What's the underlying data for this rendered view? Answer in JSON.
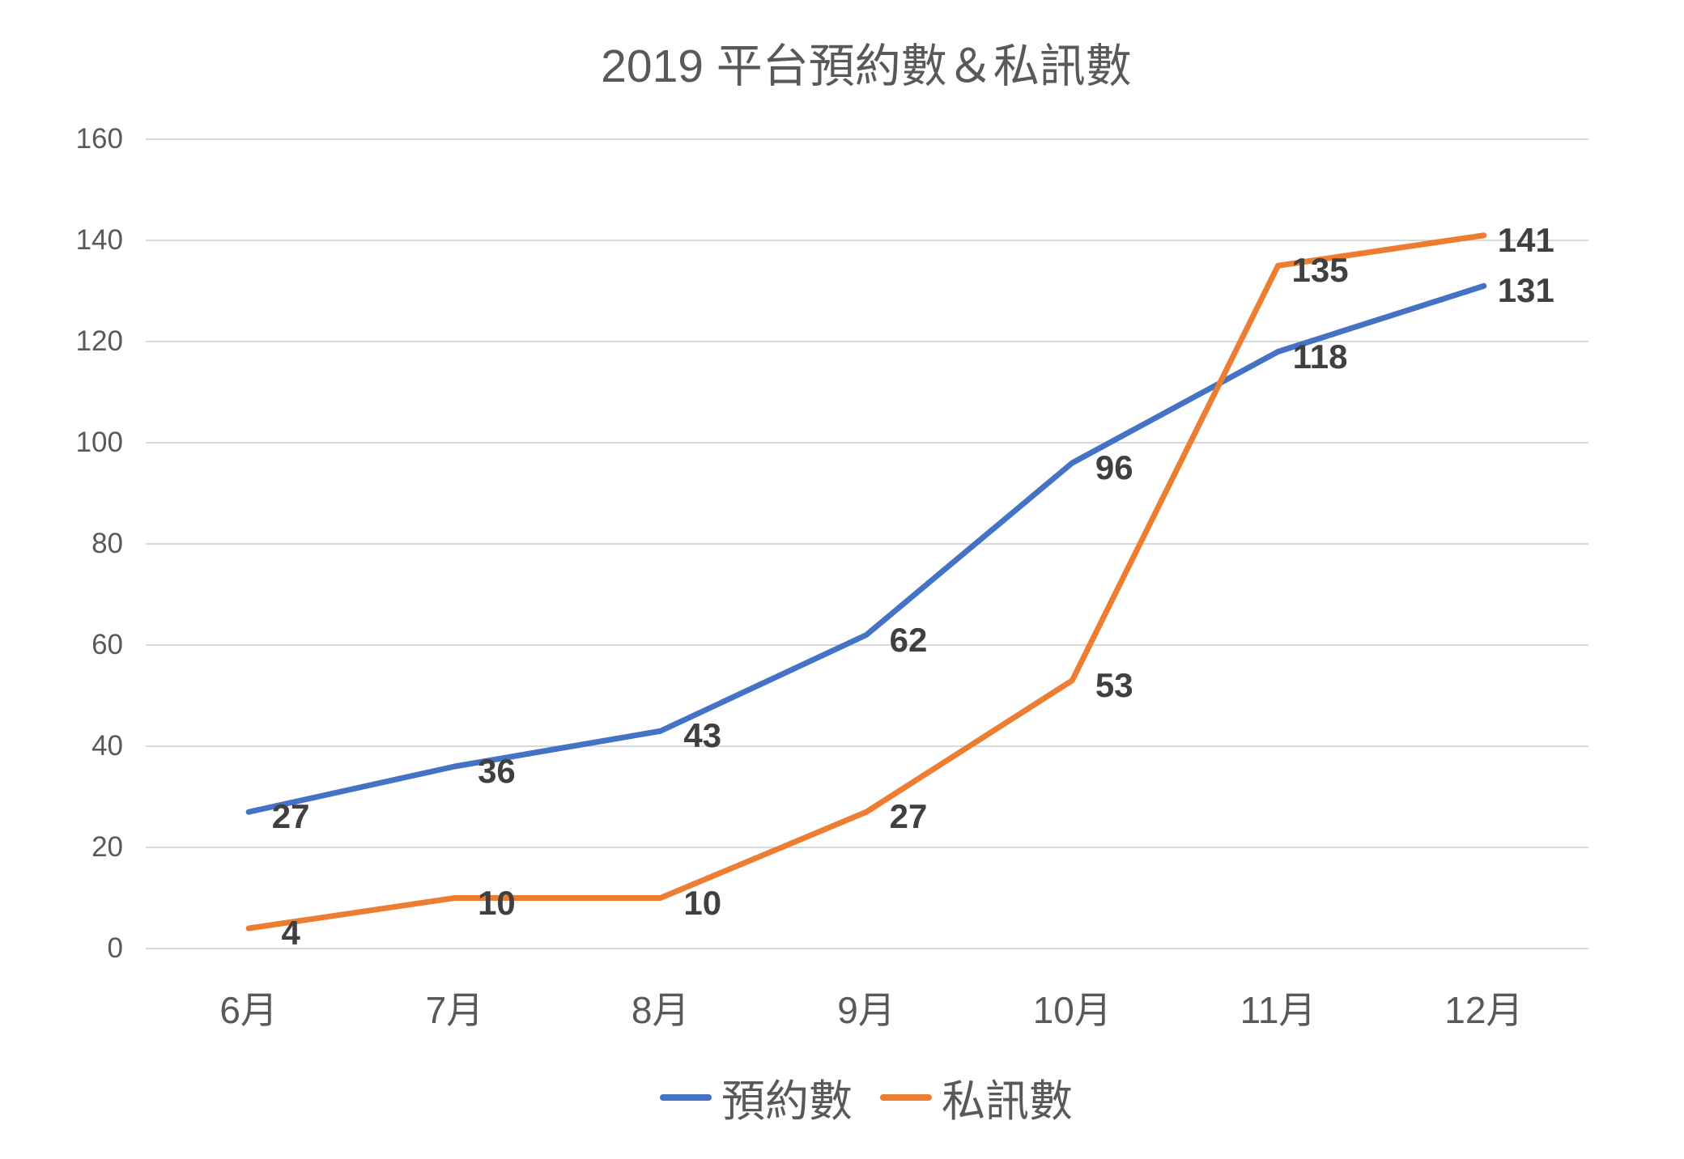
{
  "chart_data": {
    "type": "line",
    "title": "2019 平台預約數＆私訊數",
    "categories": [
      "6月",
      "7月",
      "8月",
      "9月",
      "10月",
      "11月",
      "12月"
    ],
    "series": [
      {
        "name": "預約數",
        "color": "#4472C4",
        "values": [
          27,
          36,
          43,
          62,
          96,
          118,
          131
        ]
      },
      {
        "name": "私訊數",
        "color": "#ED7D31",
        "values": [
          4,
          10,
          10,
          27,
          53,
          135,
          141
        ]
      }
    ],
    "ylim": [
      0,
      160
    ],
    "ytick_step": 20,
    "yticks": [
      0,
      20,
      40,
      60,
      80,
      100,
      120,
      140,
      160
    ],
    "grid": true,
    "legend_position": "bottom",
    "data_labels": true
  },
  "colors": {
    "title_text": "#595959",
    "axis_text": "#595959",
    "data_label_text": "#404040",
    "gridline": "#D9D9D9",
    "background": "#FFFFFF"
  }
}
